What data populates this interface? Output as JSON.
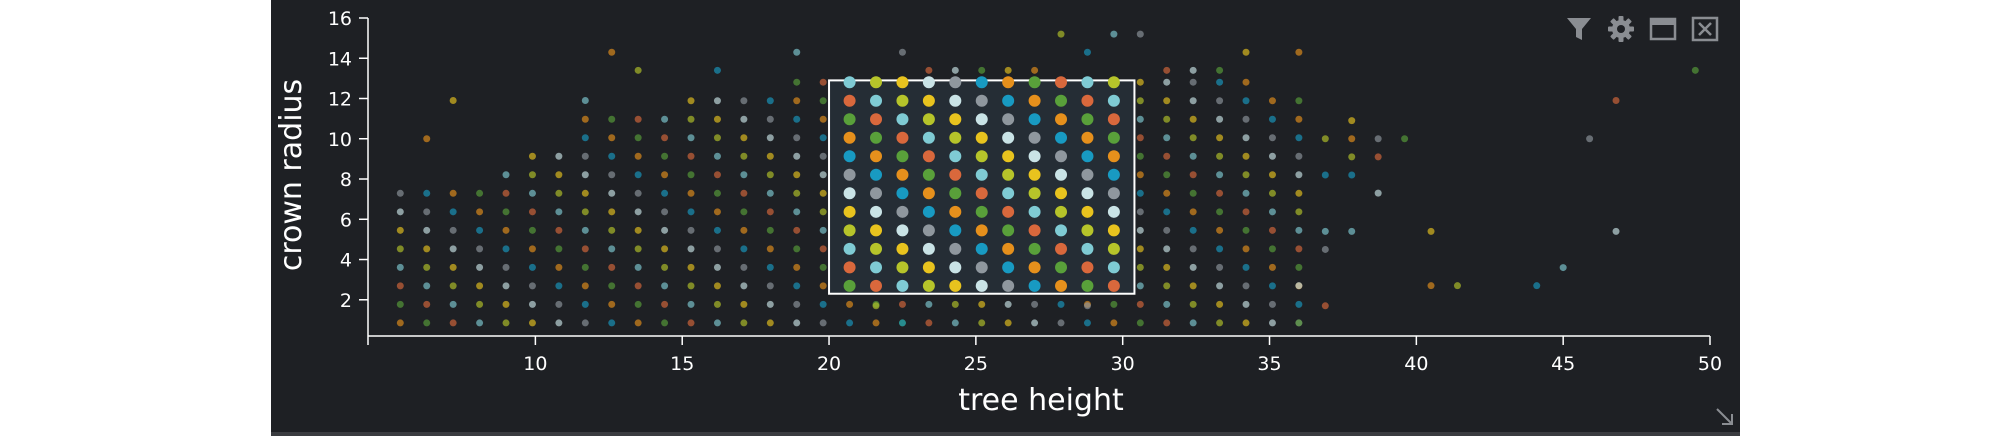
{
  "toolbar": {
    "icons": [
      "filter-icon",
      "gear-icon",
      "maximize-icon",
      "close-icon"
    ]
  },
  "chart_data": {
    "type": "scatter",
    "xlabel": "tree height",
    "ylabel": "crown radius",
    "xlim": [
      4.3,
      50
    ],
    "ylim": [
      0.2,
      16
    ],
    "xticks": [
      10,
      15,
      20,
      25,
      30,
      35,
      40,
      45,
      50
    ],
    "yticks": [
      2,
      4,
      6,
      8,
      10,
      12,
      14,
      16
    ],
    "grid": false,
    "legend": "none",
    "palette": [
      "#e6901c",
      "#59a03a",
      "#d9683c",
      "#7fcbd4",
      "#b6c42a",
      "#e8c31e",
      "#c9e3e6",
      "#8f979e",
      "#189ac2"
    ],
    "selection": {
      "x": [
        20,
        30.4
      ],
      "y": [
        2.3,
        12.9
      ]
    },
    "grid_points": {
      "x_start": 5.4,
      "x_step": 0.9,
      "y_start": 0.85,
      "y_step": 0.92,
      "columns": [
        {
          "x": 5.4,
          "y_max": 7.3
        },
        {
          "x": 6.3,
          "y_max": 7.3
        },
        {
          "x": 7.2,
          "y_max": 7.3
        },
        {
          "x": 8.1,
          "y_max": 8.2
        },
        {
          "x": 9.0,
          "y_max": 9.1
        },
        {
          "x": 9.9,
          "y_max": 10.0
        },
        {
          "x": 10.8,
          "y_max": 10.0
        },
        {
          "x": 11.7,
          "y_max": 11.0
        },
        {
          "x": 12.6,
          "y_max": 11.0
        },
        {
          "x": 13.5,
          "y_max": 11.0
        },
        {
          "x": 14.4,
          "y_max": 11.0
        },
        {
          "x": 15.3,
          "y_max": 11.9
        },
        {
          "x": 16.2,
          "y_max": 11.9
        },
        {
          "x": 17.1,
          "y_max": 11.9
        },
        {
          "x": 18.0,
          "y_max": 11.9
        },
        {
          "x": 18.9,
          "y_max": 12.9
        },
        {
          "x": 19.8,
          "y_max": 12.9
        },
        {
          "x": 20.7,
          "y_max": 12.9
        },
        {
          "x": 21.6,
          "y_max": 12.9
        },
        {
          "x": 22.5,
          "y_max": 12.9
        },
        {
          "x": 23.4,
          "y_max": 12.9
        },
        {
          "x": 24.3,
          "y_max": 12.9
        },
        {
          "x": 25.2,
          "y_max": 12.9
        },
        {
          "x": 26.1,
          "y_max": 12.9
        },
        {
          "x": 27.0,
          "y_max": 12.9
        },
        {
          "x": 27.9,
          "y_max": 12.9
        },
        {
          "x": 28.8,
          "y_max": 12.9
        },
        {
          "x": 29.7,
          "y_max": 12.9
        },
        {
          "x": 30.6,
          "y_max": 12.9
        },
        {
          "x": 31.5,
          "y_max": 12.9
        },
        {
          "x": 32.4,
          "y_max": 12.9
        },
        {
          "x": 33.3,
          "y_max": 12.9
        },
        {
          "x": 34.2,
          "y_max": 12.9
        },
        {
          "x": 35.1,
          "y_max": 11.9
        },
        {
          "x": 36.0,
          "y_max": 11.9
        }
      ]
    },
    "extra_points": [
      {
        "x": 12.6,
        "y": 14.3
      },
      {
        "x": 13.5,
        "y": 13.4
      },
      {
        "x": 16.2,
        "y": 13.4
      },
      {
        "x": 18.9,
        "y": 14.3
      },
      {
        "x": 22.5,
        "y": 14.3
      },
      {
        "x": 23.4,
        "y": 13.4
      },
      {
        "x": 24.3,
        "y": 13.4
      },
      {
        "x": 25.2,
        "y": 13.4
      },
      {
        "x": 26.1,
        "y": 13.4
      },
      {
        "x": 27.0,
        "y": 13.4
      },
      {
        "x": 27.9,
        "y": 15.2
      },
      {
        "x": 28.8,
        "y": 14.3
      },
      {
        "x": 29.7,
        "y": 15.2
      },
      {
        "x": 30.6,
        "y": 15.2
      },
      {
        "x": 31.5,
        "y": 13.4
      },
      {
        "x": 32.4,
        "y": 13.4
      },
      {
        "x": 33.3,
        "y": 13.4
      },
      {
        "x": 34.2,
        "y": 14.3
      },
      {
        "x": 36.0,
        "y": 14.3
      },
      {
        "x": 36.9,
        "y": 10.0
      },
      {
        "x": 36.9,
        "y": 8.2
      },
      {
        "x": 36.9,
        "y": 5.4
      },
      {
        "x": 36.9,
        "y": 4.5
      },
      {
        "x": 36.9,
        "y": 1.7
      },
      {
        "x": 36.0,
        "y": 2.7
      },
      {
        "x": 36.0,
        "y": 0.85
      },
      {
        "x": 37.8,
        "y": 10.9
      },
      {
        "x": 37.8,
        "y": 10.0
      },
      {
        "x": 37.8,
        "y": 9.1
      },
      {
        "x": 37.8,
        "y": 8.2
      },
      {
        "x": 37.8,
        "y": 5.4
      },
      {
        "x": 38.7,
        "y": 10.0
      },
      {
        "x": 38.7,
        "y": 9.1
      },
      {
        "x": 38.7,
        "y": 7.3
      },
      {
        "x": 39.6,
        "y": 10.0
      },
      {
        "x": 40.5,
        "y": 5.4
      },
      {
        "x": 40.5,
        "y": 2.7
      },
      {
        "x": 41.4,
        "y": 2.7
      },
      {
        "x": 44.1,
        "y": 2.7
      },
      {
        "x": 45.0,
        "y": 3.6
      },
      {
        "x": 45.9,
        "y": 10.0
      },
      {
        "x": 46.8,
        "y": 11.9
      },
      {
        "x": 46.8,
        "y": 5.4
      },
      {
        "x": 49.5,
        "y": 13.4
      },
      {
        "x": 7.2,
        "y": 11.9
      },
      {
        "x": 6.3,
        "y": 10.0
      },
      {
        "x": 21.6,
        "y": 1.7
      },
      {
        "x": 22.5,
        "y": 0.85
      },
      {
        "x": 11.7,
        "y": 11.9
      },
      {
        "x": 28.8,
        "y": 1.7
      }
    ]
  }
}
